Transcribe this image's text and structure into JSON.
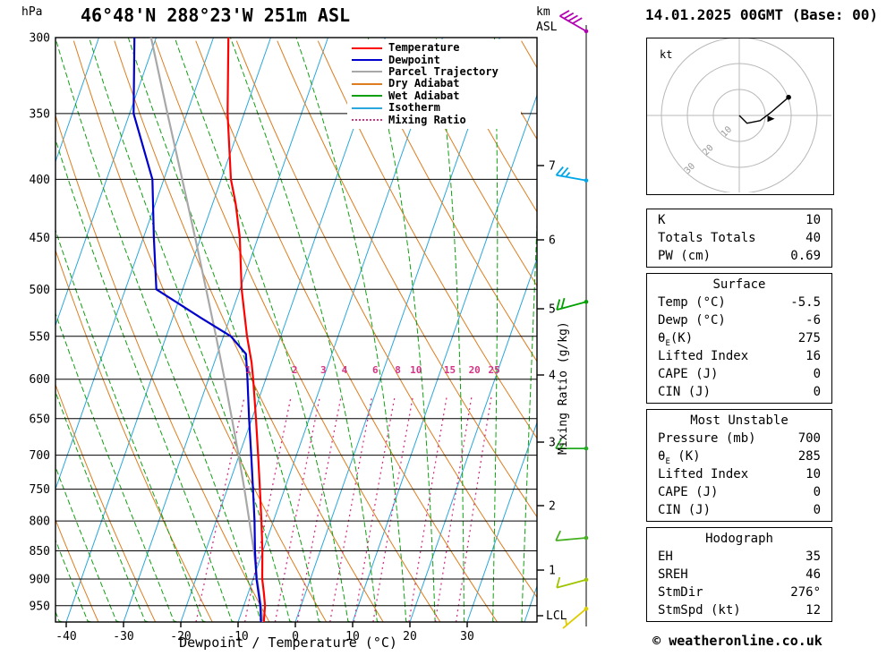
{
  "header": {
    "pressure_unit": "hPa",
    "station_title": "46°48'N 288°23'W 251m ASL",
    "km_axis_label": "km\nASL",
    "date_title": "14.01.2025 00GMT (Base: 00)"
  },
  "legend": {
    "items": [
      {
        "label": "Temperature",
        "color": "#ff0000",
        "dash": "solid"
      },
      {
        "label": "Dewpoint",
        "color": "#0000cc",
        "dash": "solid"
      },
      {
        "label": "Parcel Trajectory",
        "color": "#a8a8a8",
        "dash": "solid"
      },
      {
        "label": "Dry Adiabat",
        "color": "#dd7d1f",
        "dash": "solid"
      },
      {
        "label": "Wet Adiabat",
        "color": "#0fa00f",
        "dash": "solid"
      },
      {
        "label": "Isotherm",
        "color": "#2aa7dc",
        "dash": "solid"
      },
      {
        "label": "Mixing Ratio",
        "color": "#d63384",
        "dash": "dotted"
      }
    ]
  },
  "axes": {
    "pressure_ticks": [
      300,
      350,
      400,
      450,
      500,
      550,
      600,
      650,
      700,
      750,
      800,
      850,
      900,
      950
    ],
    "temp_ticks": [
      -40,
      -30,
      -20,
      -10,
      0,
      10,
      20,
      30
    ],
    "km_ticks": [
      7,
      6,
      5,
      4,
      3,
      2,
      1
    ],
    "lcl_label": "LCL",
    "xlabel": "Dewpoint / Temperature (°C)",
    "mixing_ratio_axis_label": "Mixing Ratio (g/kg)"
  },
  "chart_data": {
    "type": "line",
    "title": "Skew-T log-P sounding",
    "x_axis": "temperature_c",
    "y_axis": "pressure_hpa",
    "pressure_range_hpa": [
      300,
      982
    ],
    "surface_temp_axis_range_c": [
      -40,
      40
    ],
    "mixing_ratio_lines_gkg": [
      1,
      2,
      3,
      4,
      6,
      8,
      10,
      15,
      20,
      25
    ],
    "isotherm_step_c": 10,
    "dry_adiabat_step_k": 10,
    "wet_adiabat_step_c": 5,
    "series": [
      {
        "name": "Temperature",
        "color": "#ff0000",
        "pressure": [
          982,
          950,
          925,
          900,
          850,
          800,
          750,
          700,
          650,
          600,
          580,
          550,
          500,
          450,
          420,
          400,
          350,
          300
        ],
        "temp_c": [
          -5.5,
          -6.3,
          -7.3,
          -8.4,
          -10.1,
          -12.1,
          -14.3,
          -16.7,
          -19.3,
          -22.2,
          -23.5,
          -25.9,
          -29.7,
          -33.2,
          -36,
          -38.3,
          -42.9,
          -47.4
        ]
      },
      {
        "name": "Dewpoint",
        "color": "#0000cc",
        "pressure": [
          982,
          950,
          900,
          850,
          800,
          750,
          700,
          650,
          600,
          570,
          550,
          530,
          500,
          450,
          400,
          350,
          300
        ],
        "temp_c": [
          -6,
          -7.1,
          -9.4,
          -11.4,
          -13.3,
          -15.5,
          -17.9,
          -20.5,
          -23.2,
          -25,
          -28.7,
          -35,
          -44.6,
          -48.2,
          -52,
          -59.3,
          -63.8
        ]
      },
      {
        "name": "Parcel Trajectory",
        "color": "#a8a8a8",
        "pressure": [
          982,
          950,
          900,
          850,
          800,
          750,
          700,
          650,
          600,
          550,
          500,
          450,
          400,
          350,
          300
        ],
        "temp_c": [
          -5.7,
          -7,
          -9.3,
          -11.6,
          -14.2,
          -17,
          -20.1,
          -23.5,
          -27.2,
          -31.3,
          -35.9,
          -41,
          -46.8,
          -53.4,
          -60.9
        ]
      }
    ],
    "wind_barbs": [
      {
        "km": 8.9,
        "dir_deg": 300,
        "speed_kt": 40,
        "color": "#b300b3"
      },
      {
        "km": 6.8,
        "dir_deg": 280,
        "speed_kt": 25,
        "color": "#00a6e8"
      },
      {
        "km": 5.1,
        "dir_deg": 255,
        "speed_kt": 20,
        "color": "#00a000"
      },
      {
        "km": 2.9,
        "dir_deg": 270,
        "speed_kt": 15,
        "color": "#22aa22"
      },
      {
        "km": 1.5,
        "dir_deg": 265,
        "speed_kt": 10,
        "color": "#44b020"
      },
      {
        "km": 0.85,
        "dir_deg": 255,
        "speed_kt": 10,
        "color": "#9ec400"
      },
      {
        "km": 0.4,
        "dir_deg": 230,
        "speed_kt": 5,
        "color": "#ddcc00"
      }
    ]
  },
  "hodograph": {
    "unit_label": "kt",
    "rings_kt": [
      10,
      20,
      30
    ],
    "trace_uv_kt": [
      [
        0,
        0
      ],
      [
        3,
        -3
      ],
      [
        8,
        -2
      ],
      [
        12,
        1
      ],
      [
        19,
        7
      ]
    ],
    "storm_motion_uv_kt": [
      11.9,
      -1.3
    ]
  },
  "table": {
    "top_rows": [
      {
        "label": "K",
        "value": "10"
      },
      {
        "label": "Totals Totals",
        "value": "40"
      },
      {
        "label": "PW (cm)",
        "value": "0.69"
      }
    ],
    "sections": [
      {
        "header": "Surface",
        "rows": [
          {
            "label": "Temp (°C)",
            "value": "-5.5"
          },
          {
            "label": "Dewp (°C)",
            "value": "-6"
          },
          {
            "label": "θE(K)",
            "value": "275"
          },
          {
            "label": "Lifted Index",
            "value": "16"
          },
          {
            "label": "CAPE (J)",
            "value": "0"
          },
          {
            "label": "CIN (J)",
            "value": "0"
          }
        ]
      },
      {
        "header": "Most Unstable",
        "rows": [
          {
            "label": "Pressure (mb)",
            "value": "700"
          },
          {
            "label": "θE (K)",
            "value": "285"
          },
          {
            "label": "Lifted Index",
            "value": "10"
          },
          {
            "label": "CAPE (J)",
            "value": "0"
          },
          {
            "label": "CIN (J)",
            "value": "0"
          }
        ]
      },
      {
        "header": "Hodograph",
        "rows": [
          {
            "label": "EH",
            "value": "35"
          },
          {
            "label": "SREH",
            "value": "46"
          },
          {
            "label": "StmDir",
            "value": "276°"
          },
          {
            "label": "StmSpd (kt)",
            "value": "12"
          }
        ]
      }
    ]
  },
  "footer": {
    "copyright": "© weatheronline.co.uk"
  }
}
